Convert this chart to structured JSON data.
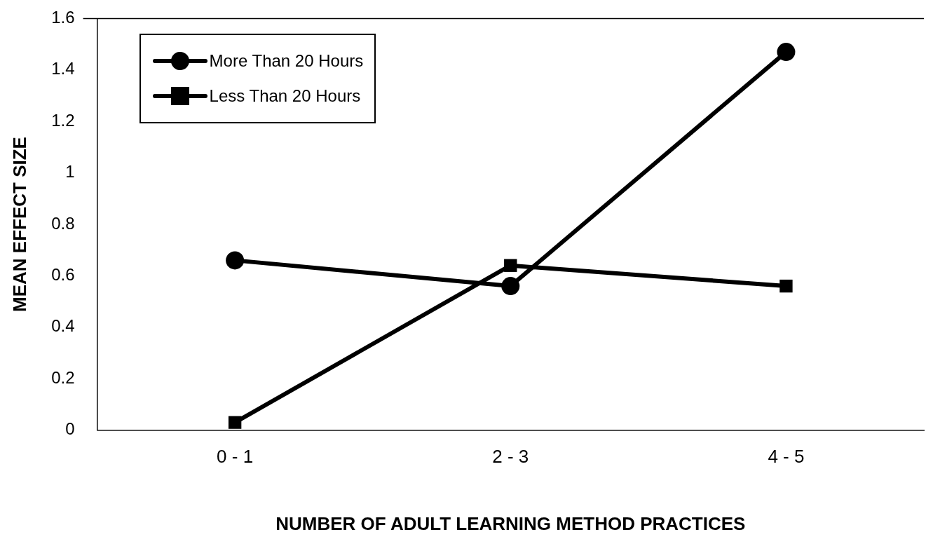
{
  "chart_data": {
    "type": "line",
    "xlabel": "NUMBER OF ADULT LEARNING METHOD PRACTICES",
    "ylabel": "MEAN EFFECT SIZE",
    "categories": [
      "0 - 1",
      "2 - 3",
      "4 - 5"
    ],
    "series": [
      {
        "name": "More Than  20 Hours",
        "color": "#000000",
        "marker": "circle",
        "values": [
          0.66,
          0.56,
          1.47
        ]
      },
      {
        "name": "Less Than  20 Hours",
        "color": "#000000",
        "marker": "square",
        "values": [
          0.03,
          0.64,
          0.56
        ]
      }
    ],
    "ylim": [
      0,
      1.6
    ],
    "yticks": [
      0,
      0.2,
      0.4,
      0.6,
      0.8,
      1,
      1.2,
      1.4,
      1.6
    ],
    "grid": false,
    "legend": "top left",
    "line_style": "solid"
  }
}
